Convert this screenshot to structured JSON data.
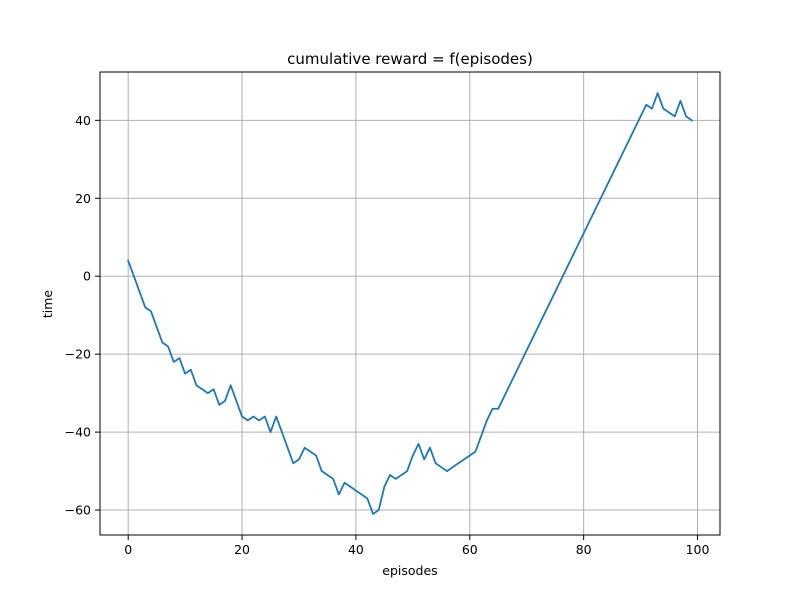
{
  "chart_data": {
    "type": "line",
    "title": "cumulative reward = f(episodes)",
    "xlabel": "episodes",
    "ylabel": "time",
    "xlim": [
      -4.95,
      103.95
    ],
    "ylim": [
      -66.4,
      52.4
    ],
    "xticks": [
      0,
      20,
      40,
      60,
      80,
      100
    ],
    "yticks": [
      -60,
      -40,
      -20,
      0,
      20,
      40
    ],
    "xtick_labels": [
      "0",
      "20",
      "40",
      "60",
      "80",
      "100"
    ],
    "ytick_labels": [
      "−60",
      "−40",
      "−20",
      "0",
      "20",
      "40"
    ],
    "grid": true,
    "legend": "none",
    "line_color": "#1f77b4",
    "grid_color": "#b0b0b0",
    "series": [
      {
        "x": [
          0,
          1,
          2,
          3,
          4,
          5,
          6,
          7,
          8,
          9,
          10,
          11,
          12,
          13,
          14,
          15,
          16,
          17,
          18,
          19,
          20,
          21,
          22,
          23,
          24,
          25,
          26,
          27,
          28,
          29,
          30,
          31,
          32,
          33,
          34,
          35,
          36,
          37,
          38,
          39,
          40,
          41,
          42,
          43,
          44,
          45,
          46,
          47,
          48,
          49,
          50,
          51,
          52,
          53,
          54,
          55,
          56,
          57,
          58,
          59,
          60,
          61,
          62,
          63,
          64,
          65,
          66,
          67,
          68,
          69,
          70,
          71,
          72,
          73,
          74,
          75,
          76,
          77,
          78,
          79,
          80,
          81,
          82,
          83,
          84,
          85,
          86,
          87,
          88,
          89,
          90,
          91,
          92,
          93,
          94,
          95,
          96,
          97,
          98,
          99
        ],
        "values": [
          4,
          0,
          -4,
          -8,
          -9,
          -13,
          -17,
          -18,
          -22,
          -21,
          -25,
          -24,
          -28,
          -29,
          -30,
          -29,
          -33,
          -32,
          -28,
          -32,
          -36,
          -37,
          -36,
          -37,
          -36,
          -40,
          -36,
          -40,
          -44,
          -48,
          -47,
          -44,
          -45,
          -46,
          -50,
          -51,
          -52,
          -56,
          -53,
          -54,
          -55,
          -56,
          -57,
          -61,
          -60,
          -54,
          -51,
          -52,
          -51,
          -50,
          -46,
          -43,
          -47,
          -44,
          -48,
          -49,
          -50,
          -49,
          -48,
          -47,
          -46,
          -45,
          -41,
          -37,
          -34,
          -34,
          -31,
          -28,
          -25,
          -22,
          -19,
          -16,
          -13,
          -10,
          -7,
          -4,
          -1,
          2,
          5,
          8,
          11,
          14,
          17,
          20,
          23,
          26,
          29,
          32,
          35,
          38,
          41,
          44,
          43,
          47,
          43,
          42,
          41,
          45,
          41,
          40
        ]
      }
    ]
  }
}
